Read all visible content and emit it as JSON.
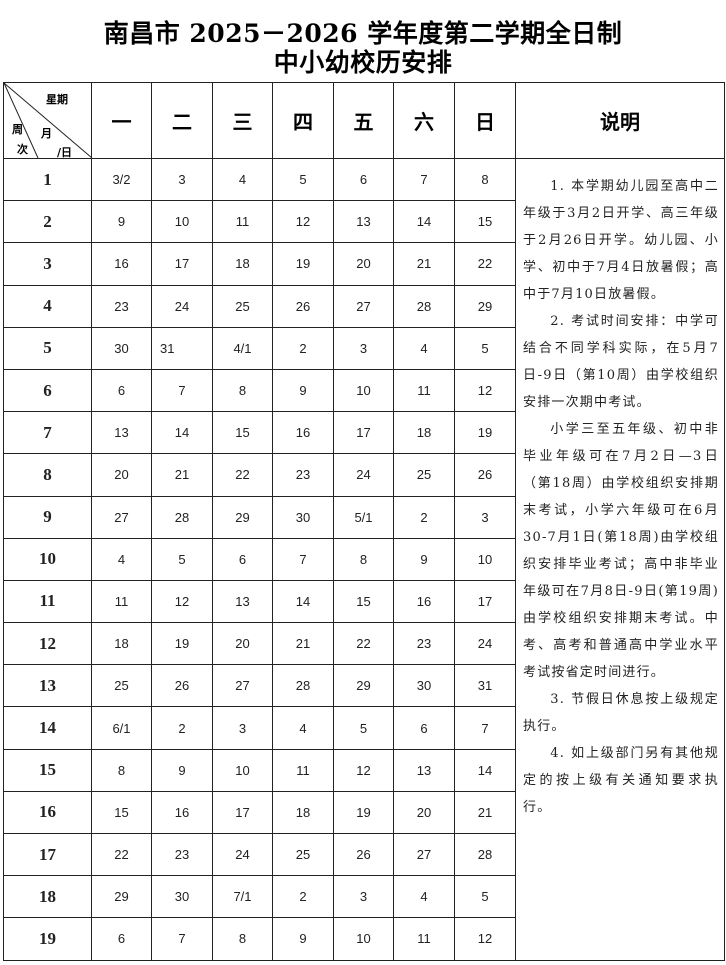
{
  "title_line1": "南昌市 2025－2026 学年度第二学期全日制",
  "title_line2": "中小幼校历安排",
  "corner": {
    "weekday": "星期",
    "week1": "周",
    "week2": "次",
    "month": "月",
    "day": "/日"
  },
  "weekdays": [
    "一",
    "二",
    "三",
    "四",
    "五",
    "六",
    "日"
  ],
  "notes_header": "说明",
  "rows": [
    {
      "week": "1",
      "days": [
        "3/2",
        "3",
        "4",
        "5",
        "6",
        "7",
        "8"
      ]
    },
    {
      "week": "2",
      "days": [
        "9",
        "10",
        "11",
        "12",
        "13",
        "14",
        "15"
      ]
    },
    {
      "week": "3",
      "days": [
        "16",
        "17",
        "18",
        "19",
        "20",
        "21",
        "22"
      ]
    },
    {
      "week": "4",
      "days": [
        "23",
        "24",
        "25",
        "26",
        "27",
        "28",
        "29"
      ]
    },
    {
      "week": "5",
      "days": [
        "30",
        "31",
        "4/1",
        "2",
        "3",
        "4",
        "5"
      ]
    },
    {
      "week": "6",
      "days": [
        "6",
        "7",
        "8",
        "9",
        "10",
        "11",
        "12"
      ]
    },
    {
      "week": "7",
      "days": [
        "13",
        "14",
        "15",
        "16",
        "17",
        "18",
        "19"
      ]
    },
    {
      "week": "8",
      "days": [
        "20",
        "21",
        "22",
        "23",
        "24",
        "25",
        "26"
      ]
    },
    {
      "week": "9",
      "days": [
        "27",
        "28",
        "29",
        "30",
        "5/1",
        "2",
        "3"
      ]
    },
    {
      "week": "10",
      "days": [
        "4",
        "5",
        "6",
        "7",
        "8",
        "9",
        "10"
      ]
    },
    {
      "week": "11",
      "days": [
        "11",
        "12",
        "13",
        "14",
        "15",
        "16",
        "17"
      ]
    },
    {
      "week": "12",
      "days": [
        "18",
        "19",
        "20",
        "21",
        "22",
        "23",
        "24"
      ]
    },
    {
      "week": "13",
      "days": [
        "25",
        "26",
        "27",
        "28",
        "29",
        "30",
        "31"
      ]
    },
    {
      "week": "14",
      "days": [
        "6/1",
        "2",
        "3",
        "4",
        "5",
        "6",
        "7"
      ]
    },
    {
      "week": "15",
      "days": [
        "8",
        "9",
        "10",
        "11",
        "12",
        "13",
        "14"
      ]
    },
    {
      "week": "16",
      "days": [
        "15",
        "16",
        "17",
        "18",
        "19",
        "20",
        "21"
      ]
    },
    {
      "week": "17",
      "days": [
        "22",
        "23",
        "24",
        "25",
        "26",
        "27",
        "28"
      ]
    },
    {
      "week": "18",
      "days": [
        "29",
        "30",
        "7/1",
        "2",
        "3",
        "4",
        "5"
      ]
    },
    {
      "week": "19",
      "days": [
        "6",
        "7",
        "8",
        "9",
        "10",
        "11",
        "12"
      ]
    }
  ],
  "notes": [
    "1. 本学期幼儿园至高中二年级于3月2日开学、高三年级于2月26日开学。幼儿园、小学、初中于7月4日放暑假；高中于7月10日放暑假。",
    "2. 考试时间安排：中学可结合不同学科实际，在5月7日-9日（第10周）由学校组织安排一次期中考试。",
    "小学三至五年级、初中非毕业年级可在7月2日—3日（第18周）由学校组织安排期末考试，小学六年级可在6月30-7月1日(第18周)由学校组织安排毕业考试；高中非毕业年级可在7月8日-9日(第19周)由学校组织安排期末考试。中考、高考和普通高中学业水平考试按省定时间进行。",
    "3. 节假日休息按上级规定执行。",
    "4. 如上级部门另有其他规定的按上级有关通知要求执行。"
  ]
}
